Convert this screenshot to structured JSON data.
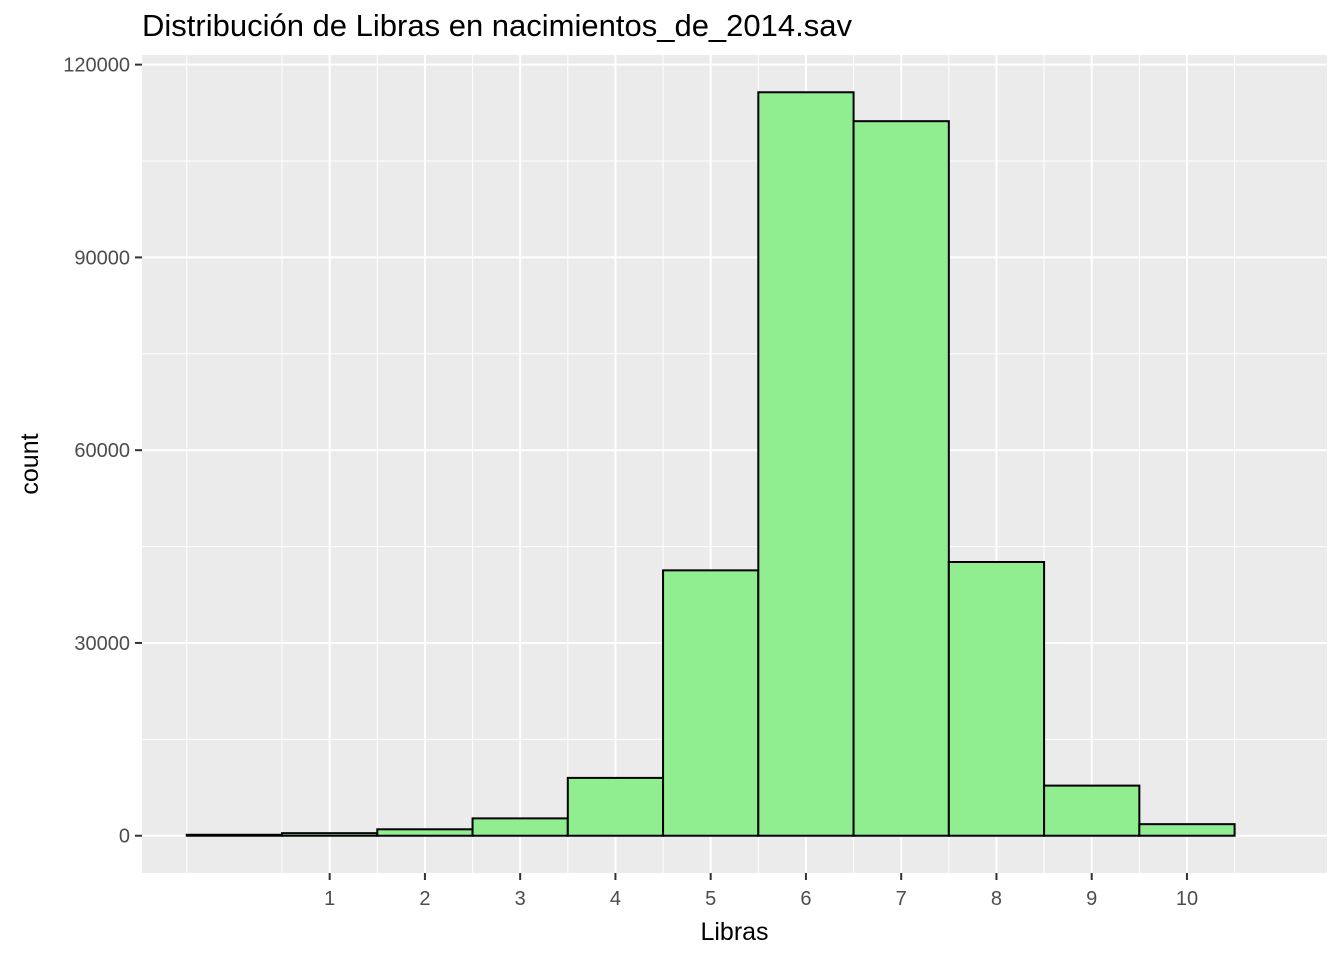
{
  "chart_data": {
    "type": "bar",
    "title": "Distribución de Libras en nacimientos_de_2014.sav",
    "xlabel": "Libras",
    "ylabel": "count",
    "bin_width": 1,
    "bins": [
      {
        "x_center": 0,
        "count": 150
      },
      {
        "x_center": 1,
        "count": 400
      },
      {
        "x_center": 2,
        "count": 1000
      },
      {
        "x_center": 3,
        "count": 2700
      },
      {
        "x_center": 4,
        "count": 9000
      },
      {
        "x_center": 5,
        "count": 41300
      },
      {
        "x_center": 6,
        "count": 115700
      },
      {
        "x_center": 7,
        "count": 111200
      },
      {
        "x_center": 8,
        "count": 42600
      },
      {
        "x_center": 9,
        "count": 7800
      },
      {
        "x_center": 10,
        "count": 1800
      }
    ],
    "xlim": [
      -0.97,
      11.47
    ],
    "ylim": [
      -5800,
      121500
    ],
    "x_ticks": [
      1,
      2,
      3,
      4,
      5,
      6,
      7,
      8,
      9,
      10
    ],
    "x_tick_labels": [
      "1",
      "2",
      "3",
      "4",
      "5",
      "6",
      "7",
      "8",
      "9",
      "10"
    ],
    "x_minor_ticks": [
      -0.5,
      0.5,
      1.5,
      2.5,
      3.5,
      4.5,
      5.5,
      6.5,
      7.5,
      8.5,
      9.5,
      10.5,
      11.5
    ],
    "y_ticks": [
      0,
      30000,
      60000,
      90000,
      120000
    ],
    "y_tick_labels": [
      "0",
      "30000",
      "60000",
      "90000",
      "120000"
    ],
    "y_minor_ticks": [
      15000,
      45000,
      75000,
      105000
    ],
    "grid": true,
    "legend": "none",
    "colors": {
      "bar_fill": "#90ee90",
      "bar_outline": "#000000",
      "panel_background": "#ebebeb",
      "grid": "#ffffff"
    }
  }
}
